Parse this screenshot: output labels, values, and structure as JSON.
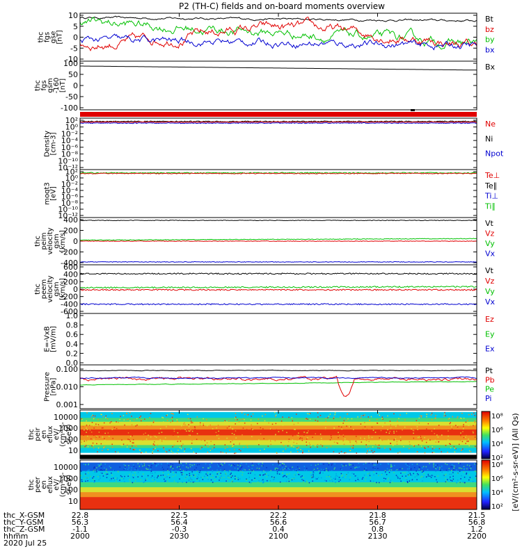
{
  "chart_data": {
    "type": "line",
    "title": "P2 (TH-C) fields and on-board moments overview",
    "x_axis": {
      "rows": [
        {
          "name": "thc_X-GSM",
          "values": [
            "22.8",
            "22.5",
            "22.2",
            "21.8",
            "21.5"
          ]
        },
        {
          "name": "thc_Y-GSM",
          "values": [
            "56.3",
            "56.4",
            "56.6",
            "56.7",
            "56.8"
          ]
        },
        {
          "name": "thc_Z-GSM",
          "values": [
            "-1.1",
            "-0.3",
            "0.4",
            "0.8",
            "1.2"
          ]
        },
        {
          "name": "hhmm",
          "values": [
            "2000",
            "2030",
            "2100",
            "2130",
            "2200"
          ]
        }
      ],
      "date": "2020 Jul 25"
    },
    "panels": [
      {
        "id": "fgs",
        "ylabel": [
          "thc",
          "fgs",
          "gse",
          "[nT]"
        ],
        "ticks": [
          "10",
          "5",
          "0",
          "-5",
          "-10"
        ],
        "yrange": [
          -10,
          10
        ],
        "legend": [
          {
            "name": "Bt",
            "color": "#000000"
          },
          {
            "name": "bz",
            "color": "#e00000"
          },
          {
            "name": "by",
            "color": "#00c000"
          },
          {
            "name": "bx",
            "color": "#0000d0"
          }
        ]
      },
      {
        "id": "fgs_gsm",
        "ylabel": [
          "thc",
          "fgs",
          "gsm",
          "-160",
          "[nT]"
        ],
        "ticks": [
          "100",
          "50",
          "0",
          "-50",
          "-100"
        ],
        "yrange": [
          -130,
          110
        ],
        "legend": [
          {
            "name": "Bx",
            "color": "#000000"
          }
        ]
      },
      {
        "id": "density",
        "ylabel": [
          "Density",
          "[cm-3]"
        ],
        "ticks": [
          "10²",
          "10⁰",
          "10⁻²",
          "10⁻⁴",
          "10⁻⁶",
          "10⁻⁸",
          "10⁻¹⁰",
          "10⁻¹²"
        ],
        "legend": [
          {
            "name": "Ne",
            "color": "#e00000"
          },
          {
            "name": "Ni",
            "color": "#000000"
          },
          {
            "name": "Npot",
            "color": "#0000d0"
          }
        ]
      },
      {
        "id": "temp",
        "ylabel": [
          "moqt3",
          "[eV]"
        ],
        "ticks": [
          "10²",
          "10⁰",
          "10⁻²",
          "10⁻⁴",
          "10⁻⁶",
          "10⁻⁸",
          "10⁻¹⁰",
          "10⁻¹²"
        ],
        "legend": [
          {
            "name": "Te⊥",
            "color": "#e00000"
          },
          {
            "name": "Te∥",
            "color": "#000000"
          },
          {
            "name": "Ti⊥",
            "color": "#0000d0"
          },
          {
            "name": "Ti∥",
            "color": "#00c000"
          }
        ]
      },
      {
        "id": "peim",
        "ylabel": [
          "thc",
          "peim",
          "velocity",
          "gsm",
          "[km/s]"
        ],
        "ticks": [
          "400",
          "200",
          "0",
          "-200",
          "-400"
        ],
        "yrange": [
          -420,
          420
        ],
        "legend": [
          {
            "name": "Vt",
            "color": "#000000"
          },
          {
            "name": "Vz",
            "color": "#e00000"
          },
          {
            "name": "Vy",
            "color": "#00c000"
          },
          {
            "name": "Vx",
            "color": "#0000d0"
          }
        ]
      },
      {
        "id": "peem",
        "ylabel": [
          "thc",
          "peem",
          "velocity",
          "gsm",
          "[km/s]"
        ],
        "ticks": [
          "600",
          "400",
          "200",
          "0",
          "-200",
          "-400",
          "-600"
        ],
        "yrange": [
          -620,
          620
        ],
        "legend": [
          {
            "name": "Vt",
            "color": "#000000"
          },
          {
            "name": "Vz",
            "color": "#e00000"
          },
          {
            "name": "Vy",
            "color": "#00c000"
          },
          {
            "name": "Vx",
            "color": "#0000d0"
          }
        ]
      },
      {
        "id": "efield",
        "ylabel": [
          "E=-VxB",
          "[mV/m]"
        ],
        "ticks": [
          "1.0",
          "0.8",
          "0.6",
          "0.4",
          "0.2",
          "0.0"
        ],
        "yrange": [
          0,
          1
        ],
        "legend": [
          {
            "name": "Ez",
            "color": "#e00000"
          },
          {
            "name": "Ey",
            "color": "#00c000"
          },
          {
            "name": "Ex",
            "color": "#0000d0"
          }
        ]
      },
      {
        "id": "pressure",
        "ylabel": [
          "Pressure",
          "[nPa]"
        ],
        "ticks": [
          "0.100",
          "0.010",
          "0.001"
        ],
        "legend": [
          {
            "name": "Pt",
            "color": "#000000"
          },
          {
            "name": "Pb",
            "color": "#e00000"
          },
          {
            "name": "Pe",
            "color": "#00c000"
          },
          {
            "name": "Pi",
            "color": "#0000d0"
          }
        ]
      },
      {
        "id": "peir",
        "ylabel": [
          "thc",
          "peir",
          "en",
          "eflux",
          "eV/",
          "(cm²-s-",
          "sr-eV)"
        ],
        "ticks": [
          "10000",
          "1000",
          "100",
          "10"
        ]
      },
      {
        "id": "peer",
        "ylabel": [
          "thc",
          "peer",
          "en",
          "eflux",
          "eV/",
          "(cm²-s-",
          "sr-eV)"
        ],
        "ticks": [
          "10000",
          "1000",
          "100",
          "10"
        ]
      }
    ],
    "colorbar": {
      "ticks": [
        "10⁸",
        "10⁶",
        "10⁴",
        "10²",
        "10⁸",
        "10⁶",
        "10⁴",
        "10²"
      ],
      "label": "[eV/(cm²-s-sr-eV)] (All Qs)"
    }
  }
}
